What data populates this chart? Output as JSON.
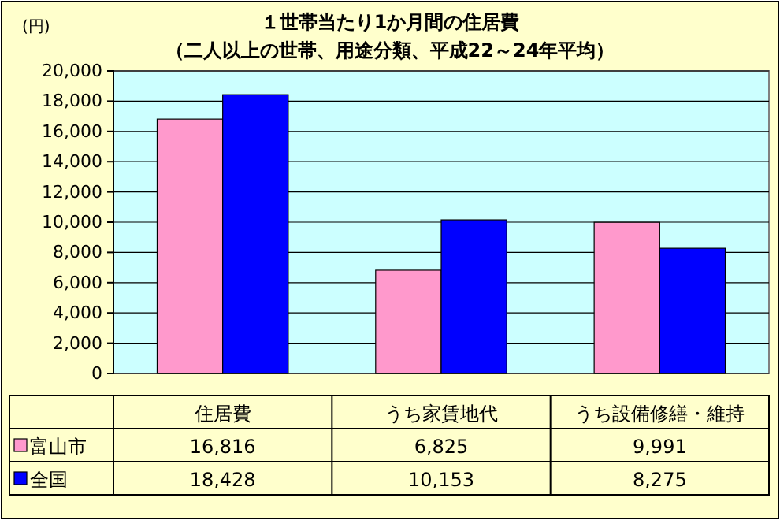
{
  "chart_data": {
    "type": "bar",
    "title": "１世帯当たり1か月間の住居費",
    "subtitle": "（二人以上の世帯、用途分類、平成22～24年平均）",
    "ylabel": "(円)",
    "categories": [
      "住居費",
      "うち家賃地代",
      "うち設備修繕・維持"
    ],
    "series": [
      {
        "name": "富山市",
        "color": "#ff99cc",
        "values": [
          16816,
          6825,
          9991
        ],
        "value_labels": [
          "16,816",
          "6,825",
          "9,991"
        ]
      },
      {
        "name": "全国",
        "color": "#0000ff",
        "values": [
          18428,
          10153,
          8275
        ],
        "value_labels": [
          "18,428",
          "10,153",
          "8,275"
        ]
      }
    ],
    "ylim": [
      0,
      20000
    ],
    "yticks": [
      0,
      {
        "value": 2000,
        "label": "2,000"
      },
      {
        "value": 4000,
        "label": "4,000"
      },
      {
        "value": 6000,
        "label": "6,000"
      },
      {
        "value": 8000,
        "label": "8,000"
      },
      {
        "value": 10000,
        "label": "10,000"
      },
      {
        "value": 12000,
        "label": "12,000"
      },
      {
        "value": 14000,
        "label": "14,000"
      },
      {
        "value": 16000,
        "label": "16,000"
      },
      {
        "value": 18000,
        "label": "18,000"
      },
      {
        "value": 20000,
        "label": "20,000"
      }
    ],
    "grid": "y",
    "legend": "bottom left"
  }
}
